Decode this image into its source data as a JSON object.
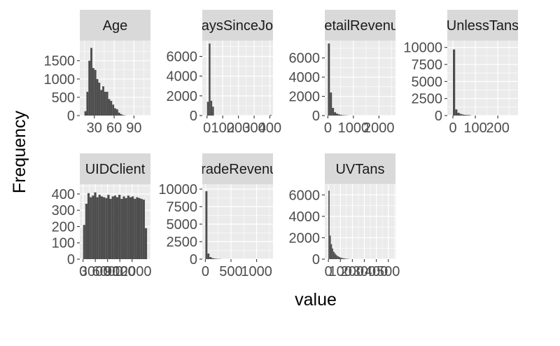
{
  "colors": {
    "panel_bg": "#ebebeb",
    "grid_major": "#ffffff",
    "strip_bg": "#d9d9d9",
    "bar_fill": "#4d4d4d",
    "tick_text": "#4d4d4d",
    "strip_text": "#1a1a1a"
  },
  "chart_data": {
    "type": "bar",
    "title": "",
    "xlabel": "value",
    "ylabel": "Frequency",
    "grid": true,
    "facet_layout": "4 columns x 2 rows, free scales",
    "panels": [
      {
        "name": "Age",
        "xlim": [
          8,
          115
        ],
        "ylim": [
          0,
          2050
        ],
        "xticks": [
          {
            "v": 30,
            "label": "30"
          },
          {
            "v": 60,
            "label": "60"
          },
          {
            "v": 90,
            "label": "90"
          }
        ],
        "yticks": [
          {
            "v": 0,
            "label": "0"
          },
          {
            "v": 500,
            "label": "500"
          },
          {
            "v": 1000,
            "label": "1000"
          },
          {
            "v": 1500,
            "label": "1500"
          }
        ],
        "bars": [
          {
            "x0": 15,
            "x1": 18,
            "y": 120
          },
          {
            "x0": 18,
            "x1": 21,
            "y": 650
          },
          {
            "x0": 21,
            "x1": 24,
            "y": 1500
          },
          {
            "x0": 24,
            "x1": 27,
            "y": 1850
          },
          {
            "x0": 27,
            "x1": 30,
            "y": 1300
          },
          {
            "x0": 30,
            "x1": 33,
            "y": 1250
          },
          {
            "x0": 33,
            "x1": 36,
            "y": 1000
          },
          {
            "x0": 36,
            "x1": 39,
            "y": 900
          },
          {
            "x0": 39,
            "x1": 42,
            "y": 700
          },
          {
            "x0": 42,
            "x1": 45,
            "y": 800
          },
          {
            "x0": 45,
            "x1": 48,
            "y": 650
          },
          {
            "x0": 48,
            "x1": 51,
            "y": 650
          },
          {
            "x0": 51,
            "x1": 54,
            "y": 450
          },
          {
            "x0": 54,
            "x1": 57,
            "y": 400
          },
          {
            "x0": 57,
            "x1": 60,
            "y": 300
          },
          {
            "x0": 60,
            "x1": 63,
            "y": 200
          },
          {
            "x0": 63,
            "x1": 66,
            "y": 170
          },
          {
            "x0": 66,
            "x1": 69,
            "y": 80
          },
          {
            "x0": 69,
            "x1": 72,
            "y": 40
          },
          {
            "x0": 72,
            "x1": 75,
            "y": 15
          },
          {
            "x0": 75,
            "x1": 78,
            "y": 5
          }
        ]
      },
      {
        "name": "DaysSinceJoin",
        "xlim": [
          -30,
          420
        ],
        "ylim": [
          0,
          7600
        ],
        "xticks": [
          {
            "v": 0,
            "label": "0"
          },
          {
            "v": 100,
            "label": "100"
          },
          {
            "v": 200,
            "label": "200"
          },
          {
            "v": 300,
            "label": "300"
          },
          {
            "v": 400,
            "label": "400"
          }
        ],
        "yticks": [
          {
            "v": 0,
            "label": "0"
          },
          {
            "v": 2000,
            "label": "2000"
          },
          {
            "v": 4000,
            "label": "4000"
          },
          {
            "v": 6000,
            "label": "6000"
          }
        ],
        "bars": [
          {
            "x0": 0,
            "x1": 11,
            "y": 1400
          },
          {
            "x0": 11,
            "x1": 22,
            "y": 7300
          },
          {
            "x0": 22,
            "x1": 33,
            "y": 1500
          },
          {
            "x0": 33,
            "x1": 44,
            "y": 900
          },
          {
            "x0": 400,
            "x1": 411,
            "y": 60
          }
        ]
      },
      {
        "name": "RetailRevenue",
        "xlim": [
          -120,
          2650
        ],
        "ylim": [
          0,
          7800
        ],
        "xticks": [
          {
            "v": 0,
            "label": "0"
          },
          {
            "v": 1000,
            "label": "1000"
          },
          {
            "v": 2000,
            "label": "2000"
          }
        ],
        "yticks": [
          {
            "v": 0,
            "label": "0"
          },
          {
            "v": 2000,
            "label": "2000"
          },
          {
            "v": 4000,
            "label": "4000"
          },
          {
            "v": 6000,
            "label": "6000"
          }
        ],
        "bars": [
          {
            "x0": 0,
            "x1": 80,
            "y": 7500
          },
          {
            "x0": 80,
            "x1": 160,
            "y": 2400
          },
          {
            "x0": 160,
            "x1": 240,
            "y": 800
          },
          {
            "x0": 240,
            "x1": 320,
            "y": 350
          },
          {
            "x0": 320,
            "x1": 400,
            "y": 200
          },
          {
            "x0": 400,
            "x1": 480,
            "y": 120
          },
          {
            "x0": 480,
            "x1": 560,
            "y": 70
          },
          {
            "x0": 560,
            "x1": 640,
            "y": 40
          },
          {
            "x0": 640,
            "x1": 720,
            "y": 25
          },
          {
            "x0": 720,
            "x1": 800,
            "y": 15
          }
        ]
      },
      {
        "name": "UnlessTans",
        "xlim": [
          -25,
          290
        ],
        "ylim": [
          0,
          11000
        ],
        "xticks": [
          {
            "v": 0,
            "label": "0"
          },
          {
            "v": 100,
            "label": "100"
          },
          {
            "v": 200,
            "label": "200"
          }
        ],
        "yticks": [
          {
            "v": 0,
            "label": "0"
          },
          {
            "v": 2500,
            "label": "2500"
          },
          {
            "v": 5000,
            "label": "5000"
          },
          {
            "v": 7500,
            "label": "7500"
          },
          {
            "v": 10000,
            "label": "10000"
          }
        ],
        "bars": [
          {
            "x0": 0,
            "x1": 10,
            "y": 9700
          },
          {
            "x0": 10,
            "x1": 20,
            "y": 900
          },
          {
            "x0": 20,
            "x1": 30,
            "y": 400
          },
          {
            "x0": 30,
            "x1": 40,
            "y": 250
          },
          {
            "x0": 40,
            "x1": 50,
            "y": 150
          },
          {
            "x0": 50,
            "x1": 60,
            "y": 100
          },
          {
            "x0": 60,
            "x1": 70,
            "y": 80
          },
          {
            "x0": 70,
            "x1": 80,
            "y": 60
          }
        ]
      },
      {
        "name": "UIDClient",
        "xlim": [
          -800,
          16500
        ],
        "ylim": [
          0,
          460
        ],
        "xticks": [
          {
            "v": 0,
            "label": "0"
          },
          {
            "v": 3000,
            "label": "3000"
          },
          {
            "v": 6000,
            "label": "6000"
          },
          {
            "v": 9000,
            "label": "9000"
          },
          {
            "v": 12000,
            "label": "12000"
          }
        ],
        "yticks": [
          {
            "v": 0,
            "label": "0"
          },
          {
            "v": 100,
            "label": "100"
          },
          {
            "v": 200,
            "label": "200"
          },
          {
            "v": 300,
            "label": "300"
          },
          {
            "v": 400,
            "label": "400"
          }
        ],
        "bars": [
          {
            "x0": 0,
            "x1": 540,
            "y": 210
          },
          {
            "x0": 540,
            "x1": 1080,
            "y": 340
          },
          {
            "x0": 1080,
            "x1": 1620,
            "y": 405
          },
          {
            "x0": 1620,
            "x1": 2160,
            "y": 380
          },
          {
            "x0": 2160,
            "x1": 2700,
            "y": 390
          },
          {
            "x0": 2700,
            "x1": 3240,
            "y": 410
          },
          {
            "x0": 3240,
            "x1": 3780,
            "y": 380
          },
          {
            "x0": 3780,
            "x1": 4320,
            "y": 395
          },
          {
            "x0": 4320,
            "x1": 4860,
            "y": 385
          },
          {
            "x0": 4860,
            "x1": 5400,
            "y": 380
          },
          {
            "x0": 5400,
            "x1": 5940,
            "y": 375
          },
          {
            "x0": 5940,
            "x1": 6480,
            "y": 395
          },
          {
            "x0": 6480,
            "x1": 7020,
            "y": 370
          },
          {
            "x0": 7020,
            "x1": 7560,
            "y": 385
          },
          {
            "x0": 7560,
            "x1": 8100,
            "y": 390
          },
          {
            "x0": 8100,
            "x1": 8640,
            "y": 380
          },
          {
            "x0": 8640,
            "x1": 9180,
            "y": 395
          },
          {
            "x0": 9180,
            "x1": 9720,
            "y": 370
          },
          {
            "x0": 9720,
            "x1": 10260,
            "y": 385
          },
          {
            "x0": 10260,
            "x1": 10800,
            "y": 375
          },
          {
            "x0": 10800,
            "x1": 11340,
            "y": 390
          },
          {
            "x0": 11340,
            "x1": 11880,
            "y": 380
          },
          {
            "x0": 11880,
            "x1": 12420,
            "y": 385
          },
          {
            "x0": 12420,
            "x1": 12960,
            "y": 370
          },
          {
            "x0": 12960,
            "x1": 13500,
            "y": 380
          },
          {
            "x0": 13500,
            "x1": 14040,
            "y": 375
          },
          {
            "x0": 14040,
            "x1": 14580,
            "y": 370
          },
          {
            "x0": 14580,
            "x1": 15120,
            "y": 365
          },
          {
            "x0": 15120,
            "x1": 15660,
            "y": 190
          }
        ]
      },
      {
        "name": "GradeRevenue",
        "xlim": [
          -60,
          1320
        ],
        "ylim": [
          0,
          10700
        ],
        "xticks": [
          {
            "v": 0,
            "label": "0"
          },
          {
            "v": 500,
            "label": "500"
          },
          {
            "v": 1000,
            "label": "1000"
          }
        ],
        "yticks": [
          {
            "v": 0,
            "label": "0"
          },
          {
            "v": 2500,
            "label": "2500"
          },
          {
            "v": 5000,
            "label": "5000"
          },
          {
            "v": 7500,
            "label": "7500"
          },
          {
            "v": 10000,
            "label": "10000"
          }
        ],
        "bars": [
          {
            "x0": 0,
            "x1": 40,
            "y": 9700
          },
          {
            "x0": 40,
            "x1": 80,
            "y": 800
          },
          {
            "x0": 80,
            "x1": 120,
            "y": 300
          },
          {
            "x0": 120,
            "x1": 160,
            "y": 150
          },
          {
            "x0": 160,
            "x1": 200,
            "y": 80
          },
          {
            "x0": 200,
            "x1": 240,
            "y": 50
          },
          {
            "x0": 240,
            "x1": 280,
            "y": 30
          },
          {
            "x0": 280,
            "x1": 320,
            "y": 20
          }
        ]
      },
      {
        "name": "UVTans",
        "xlim": [
          -30,
          560
        ],
        "ylim": [
          0,
          7000
        ],
        "xticks": [
          {
            "v": 0,
            "label": "0"
          },
          {
            "v": 100,
            "label": "100"
          },
          {
            "v": 200,
            "label": "200"
          },
          {
            "v": 300,
            "label": "300"
          },
          {
            "v": 400,
            "label": "400"
          },
          {
            "v": 500,
            "label": "500"
          }
        ],
        "yticks": [
          {
            "v": 0,
            "label": "0"
          },
          {
            "v": 2000,
            "label": "2000"
          },
          {
            "v": 4000,
            "label": "4000"
          },
          {
            "v": 6000,
            "label": "6000"
          }
        ],
        "bars": [
          {
            "x0": 0,
            "x1": 10,
            "y": 6400
          },
          {
            "x0": 10,
            "x1": 20,
            "y": 2200
          },
          {
            "x0": 20,
            "x1": 30,
            "y": 1400
          },
          {
            "x0": 30,
            "x1": 40,
            "y": 1000
          },
          {
            "x0": 40,
            "x1": 50,
            "y": 700
          },
          {
            "x0": 50,
            "x1": 60,
            "y": 550
          },
          {
            "x0": 60,
            "x1": 70,
            "y": 400
          },
          {
            "x0": 70,
            "x1": 80,
            "y": 300
          },
          {
            "x0": 80,
            "x1": 90,
            "y": 250
          },
          {
            "x0": 90,
            "x1": 100,
            "y": 180
          },
          {
            "x0": 100,
            "x1": 110,
            "y": 140
          },
          {
            "x0": 110,
            "x1": 120,
            "y": 100
          },
          {
            "x0": 120,
            "x1": 130,
            "y": 80
          },
          {
            "x0": 130,
            "x1": 140,
            "y": 60
          },
          {
            "x0": 140,
            "x1": 150,
            "y": 40
          },
          {
            "x0": 150,
            "x1": 160,
            "y": 30
          },
          {
            "x0": 160,
            "x1": 170,
            "y": 20
          },
          {
            "x0": 170,
            "x1": 180,
            "y": 15
          }
        ]
      }
    ]
  }
}
